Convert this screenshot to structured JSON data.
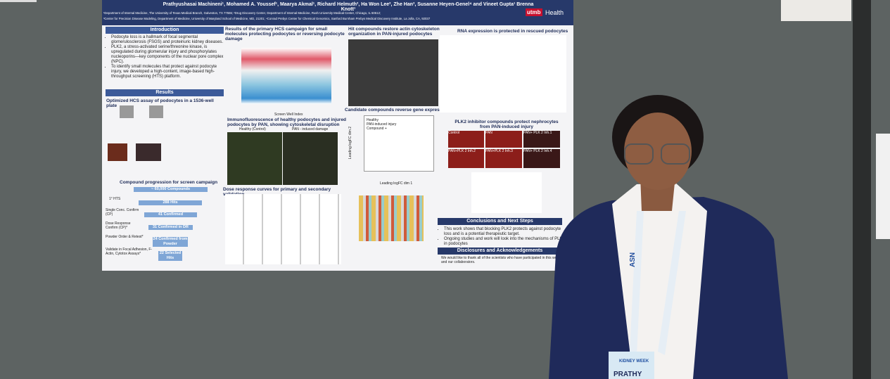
{
  "poster": {
    "authors": "Prathyushasai Machineni¹, Mohamed A. Youssef¹, Maarya Akmal¹, Richard Helmuth², Ha Won Lee², Zhe Han³, Susanne Heyen-Genel⁴ and Vineet Gupta¹ Brenna Knott¹",
    "affiliations": [
      "¹Department of Internal Medicine, The University of Texas Medical Branch, Galveston, TX 77555; ²Drug Discovery Center, Department of Internal Medicine, Rush University Medical Center, Chicago, IL 60612;",
      "³Center for Precision Disease Modeling, Department of Medicine, University of Maryland School of Medicine, MD, 21201; ⁴Conrad Prebys Center for Chemical Genomics, Sanford Burnham Prebys Medical Discovery Institute, La Jolla, CA, 92037"
    ],
    "logo": {
      "mark": "utmb",
      "text": "Health"
    },
    "introduction": {
      "title": "Introduction",
      "bullets": [
        "Podocyte loss is a hallmark of focal segmental glomerulosclerosis (FSGS) and proteinuric kidney diseases.",
        "PLK2, a stress-activated serine/threonine kinase, is upregulated during glomerular injury and phosphorylates nucleoporins—key components of the nuclear pore complex (NPC).",
        "To identify small molecules that protect against podocyte injury, we developed a high-content, image-based high-throughput screening (HTS) platform."
      ]
    },
    "results": {
      "title": "Results",
      "hcs": "Optimized HCS assay of podocytes in a 1536-well plate"
    },
    "funnel": {
      "title": "Compound progression for screen campaign",
      "steps": [
        "~ 60,000 Compounds",
        "288 Hits",
        "41 Confirmed",
        "31 Confirmed in DR",
        "24 Confirmed from Powder",
        "22 Selected Hits"
      ],
      "labels": [
        "1° HTS",
        "Single Conc. Confirm (CP)",
        "Dose Response Confirm (CP)*",
        "Powder Order & Retest*",
        "Validate in Focal Adhesion, F-Actin, Cytotox Assays*"
      ]
    },
    "column2": {
      "screen": "Results of the primary HCS campaign for small molecules protecting podocytes or reversing podocyte damage",
      "screen_axis": "Screen Well Index",
      "if_title": "Immunofluorescence of healthy podocytes and injured podocytes by PAN, showing cytoskeletal disruption",
      "if_labels": [
        "Healthy (Control)",
        "PAN - induced damage"
      ],
      "dose": "Dose response curves for primary and secondary validation"
    },
    "column3": {
      "actin": "Hit compounds restore actin cytoskeleton organization in PAN-injured podocytes",
      "gene": "Candidate compounds reverse gene expression",
      "legend": [
        "Healthy",
        "PAN-induced injury",
        "Compound +"
      ],
      "x_axis": "Leading logFC dim 1",
      "y_axis": "Leading logFC dim 2"
    },
    "column4": {
      "rna": "RNA expression is protected in rescued podocytes",
      "plk": "PLK2 inhibitor compounds protect nephrocytes from PAN-induced injury",
      "panels": [
        "Control",
        "PAN",
        "PAN+ PLK 2 Inh.1",
        "PAN+PLK 2 Inh.2",
        "PAN+PLK 2 Inh.3",
        "PAN+ PLK 2 Inh.4"
      ],
      "conclusions": {
        "title": "Conclusions and Next Steps",
        "bullets": [
          "This work shows that blocking PLK2 protects against podocyte loss and is a potential therapeutic target.",
          "Ongoing studies and work will look into the mechanisms of PLK2 in podocytes"
        ]
      },
      "disclosures": {
        "title": "Disclosures and Acknowledgements",
        "text": "We would like to thank all of the scientists who have participated in this work and our collaborators."
      }
    }
  },
  "badge": {
    "event": "KIDNEY WEEK",
    "name": "PRATHY"
  },
  "lanyard": "ASN"
}
